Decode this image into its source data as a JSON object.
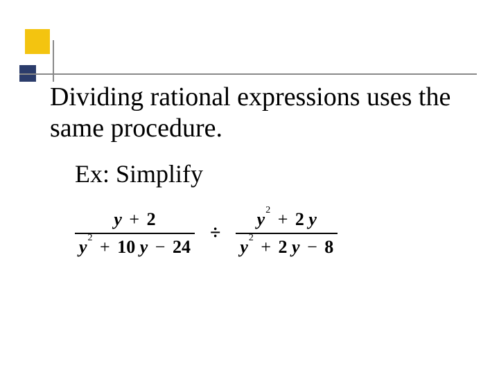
{
  "slide": {
    "heading": "Dividing rational expressions uses the same procedure.",
    "subtext": "Ex: Simplify",
    "decoration": {
      "yellow_color": "#f3c410",
      "navy_color": "#2b3c6b",
      "line_color": "#888888"
    },
    "equation": {
      "left_fraction": {
        "numerator": {
          "var1": "y",
          "op1": "+",
          "const1": "2"
        },
        "denominator": {
          "var1": "y",
          "exp1": "2",
          "op1": "+",
          "coef1": "10",
          "var2": "y",
          "op2": "−",
          "const1": "24"
        }
      },
      "operator": "÷",
      "right_fraction": {
        "numerator": {
          "var1": "y",
          "exp1": "2",
          "op1": "+",
          "coef1": "2",
          "var2": "y"
        },
        "denominator": {
          "var1": "y",
          "exp1": "2",
          "op1": "+",
          "coef1": "2",
          "var2": "y",
          "op2": "−",
          "const1": "8"
        }
      }
    }
  }
}
